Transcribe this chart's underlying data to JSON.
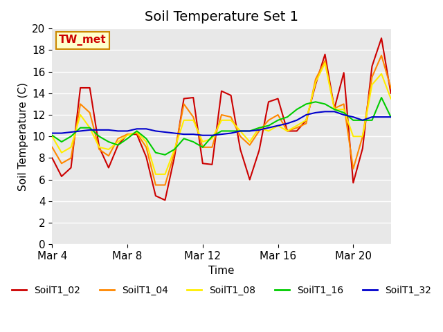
{
  "title": "Soil Temperature Set 1",
  "xlabel": "Time",
  "ylabel": "Soil Temperature (C)",
  "annotation": "TW_met",
  "ylim": [
    0,
    20
  ],
  "xlim": [
    0,
    18
  ],
  "background_color": "#e8e8e8",
  "series": {
    "SoilT1_02": {
      "color": "#cc0000",
      "x": [
        0,
        0.5,
        1.0,
        1.5,
        2.0,
        2.5,
        3.0,
        3.5,
        4.0,
        4.5,
        5.0,
        5.5,
        6.0,
        6.5,
        7.0,
        7.5,
        8.0,
        8.5,
        9.0,
        9.5,
        10.0,
        10.5,
        11.0,
        11.5,
        12.0,
        12.5,
        13.0,
        13.5,
        14.0,
        14.5,
        15.0,
        15.5,
        16.0,
        16.5,
        17.0,
        17.5,
        18.0
      ],
      "y": [
        8.0,
        6.3,
        7.1,
        14.5,
        14.5,
        9.0,
        7.1,
        9.2,
        10.2,
        10.2,
        8.1,
        4.5,
        4.1,
        8.1,
        13.5,
        13.6,
        7.5,
        7.4,
        14.2,
        13.8,
        8.8,
        6.0,
        8.7,
        13.2,
        13.5,
        10.5,
        10.5,
        11.5,
        14.8,
        17.6,
        12.6,
        15.9,
        5.7,
        8.9,
        16.5,
        19.1,
        14.0
      ]
    },
    "SoilT1_04": {
      "color": "#ff8800",
      "x": [
        0,
        0.5,
        1.0,
        1.5,
        2.0,
        2.5,
        3.0,
        3.5,
        4.0,
        4.5,
        5.0,
        5.5,
        6.0,
        6.5,
        7.0,
        7.5,
        8.0,
        8.5,
        9.0,
        9.5,
        10.0,
        10.5,
        11.0,
        11.5,
        12.0,
        12.5,
        13.0,
        13.5,
        14.0,
        14.5,
        15.0,
        15.5,
        16.0,
        16.5,
        17.0,
        17.5,
        18.0
      ],
      "y": [
        9.0,
        7.5,
        8.0,
        13.0,
        12.2,
        8.8,
        8.2,
        9.8,
        10.2,
        10.3,
        9.0,
        5.5,
        5.5,
        8.5,
        13.0,
        11.8,
        9.0,
        9.0,
        12.0,
        11.8,
        10.0,
        9.2,
        10.5,
        11.5,
        12.0,
        10.5,
        10.8,
        11.2,
        15.3,
        17.0,
        12.6,
        13.0,
        7.0,
        10.0,
        15.5,
        17.5,
        14.5
      ]
    },
    "SoilT1_08": {
      "color": "#ffee00",
      "x": [
        0,
        0.5,
        1.0,
        1.5,
        2.0,
        2.5,
        3.0,
        3.5,
        4.0,
        4.5,
        5.0,
        5.5,
        6.0,
        6.5,
        7.0,
        7.5,
        8.0,
        8.5,
        9.0,
        9.5,
        10.0,
        10.5,
        11.0,
        11.5,
        12.0,
        12.5,
        13.0,
        13.5,
        14.0,
        14.5,
        15.0,
        15.5,
        16.0,
        16.5,
        17.0,
        17.5,
        18.0
      ],
      "y": [
        10.0,
        8.5,
        9.0,
        12.0,
        10.8,
        9.0,
        8.8,
        9.5,
        10.1,
        10.4,
        9.5,
        6.5,
        6.5,
        8.8,
        11.5,
        11.5,
        9.5,
        9.8,
        11.5,
        11.5,
        10.5,
        9.5,
        10.8,
        10.5,
        11.0,
        10.5,
        11.0,
        11.5,
        15.0,
        16.8,
        12.5,
        12.5,
        10.0,
        10.0,
        14.8,
        15.8,
        13.5
      ]
    },
    "SoilT1_16": {
      "color": "#00cc00",
      "x": [
        0,
        0.5,
        1.0,
        1.5,
        2.0,
        2.5,
        3.0,
        3.5,
        4.0,
        4.5,
        5.0,
        5.5,
        6.0,
        6.5,
        7.0,
        7.5,
        8.0,
        8.5,
        9.0,
        9.5,
        10.0,
        10.5,
        11.0,
        11.5,
        12.0,
        12.5,
        13.0,
        13.5,
        14.0,
        14.5,
        15.0,
        15.5,
        16.0,
        16.5,
        17.0,
        17.5,
        18.0
      ],
      "y": [
        10.1,
        9.5,
        10.0,
        10.8,
        10.8,
        10.0,
        9.5,
        9.2,
        9.8,
        10.5,
        9.8,
        8.5,
        8.3,
        8.8,
        9.8,
        9.5,
        9.0,
        10.0,
        10.5,
        10.5,
        10.5,
        10.5,
        10.8,
        11.0,
        11.5,
        11.8,
        12.5,
        13.0,
        13.2,
        13.0,
        12.5,
        12.2,
        11.5,
        11.5,
        11.5,
        13.6,
        11.8
      ]
    },
    "SoilT1_32": {
      "color": "#0000cc",
      "x": [
        0,
        0.5,
        1.0,
        1.5,
        2.0,
        2.5,
        3.0,
        3.5,
        4.0,
        4.5,
        5.0,
        5.5,
        6.0,
        6.5,
        7.0,
        7.5,
        8.0,
        8.5,
        9.0,
        9.5,
        10.0,
        10.5,
        11.0,
        11.5,
        12.0,
        12.5,
        13.0,
        13.5,
        14.0,
        14.5,
        15.0,
        15.5,
        16.0,
        16.5,
        17.0,
        17.5,
        18.0
      ],
      "y": [
        10.3,
        10.3,
        10.4,
        10.5,
        10.6,
        10.6,
        10.6,
        10.5,
        10.5,
        10.7,
        10.7,
        10.5,
        10.4,
        10.3,
        10.2,
        10.2,
        10.1,
        10.1,
        10.2,
        10.3,
        10.5,
        10.5,
        10.6,
        10.8,
        11.0,
        11.2,
        11.5,
        12.0,
        12.2,
        12.3,
        12.3,
        12.0,
        11.8,
        11.5,
        11.8,
        11.8,
        11.8
      ]
    }
  },
  "xtick_positions": [
    0,
    4,
    8,
    12,
    16
  ],
  "xtick_labels": [
    "Mar 4",
    "Mar 8",
    "Mar 12",
    "Mar 16",
    "Mar 20"
  ],
  "ytick_positions": [
    0,
    2,
    4,
    6,
    8,
    10,
    12,
    14,
    16,
    18,
    20
  ],
  "grid_color": "#ffffff",
  "title_fontsize": 14,
  "label_fontsize": 11,
  "tick_fontsize": 11,
  "legend_fontsize": 10,
  "line_width": 1.5,
  "annotation_bg": "#ffffcc",
  "annotation_border": "#cc8800",
  "annotation_text_color": "#cc0000",
  "annotation_fontsize": 11
}
